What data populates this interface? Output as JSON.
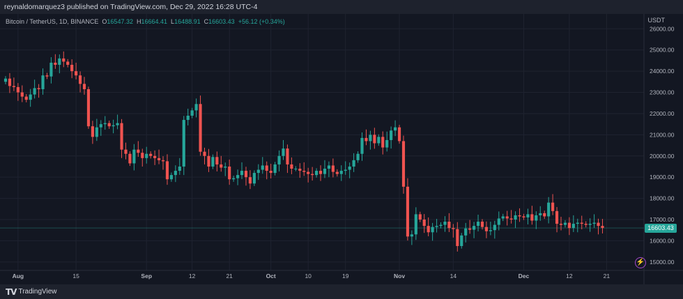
{
  "header": {
    "publish_line": "reynaldomarquez3 published on TradingView.com, Dec 29, 2022 16:28 UTC-4"
  },
  "legend": {
    "symbol": "Bitcoin / TetherUS, 1D, BINANCE",
    "open_key": "O",
    "open": "16547.32",
    "high_key": "H",
    "high": "16664.41",
    "low_key": "L",
    "low": "16488.91",
    "close_key": "C",
    "close": "16603.43",
    "change": "+56.12 (+0.34%)"
  },
  "price_axis": {
    "currency": "USDT",
    "last_price_label": "16603.43"
  },
  "footer": {
    "brand": "TradingView",
    "logo_glyph": "TV"
  },
  "icons": {
    "bolt": "⚡"
  },
  "colors": {
    "background": "#131722",
    "up": "#26a69a",
    "down": "#ef5350",
    "grid": "#1f2330",
    "text": "#b2b5be",
    "accent_purple": "#a247c9"
  },
  "chart_data": {
    "type": "candlestick",
    "title": "",
    "symbol": "Bitcoin / TetherUS",
    "interval": "1D",
    "exchange": "BINANCE",
    "y_unit": "USDT",
    "ylim": [
      14600,
      26700
    ],
    "y_ticks": [
      15000,
      16000,
      17000,
      18000,
      19000,
      20000,
      21000,
      22000,
      23000,
      24000,
      25000,
      26000
    ],
    "y_tick_labels": [
      "15000.00",
      "16000.00",
      "17000.00",
      "18000.00",
      "19000.00",
      "20000.00",
      "21000.00",
      "22000.00",
      "23000.00",
      "24000.00",
      "25000.00",
      "26000.00"
    ],
    "x_ticks": [
      {
        "label": "Aug",
        "date": "2022-08-01"
      },
      {
        "label": "15",
        "date": "2022-08-15"
      },
      {
        "label": "Sep",
        "date": "2022-09-01"
      },
      {
        "label": "12",
        "date": "2022-09-12"
      },
      {
        "label": "21",
        "date": "2022-09-21"
      },
      {
        "label": "Oct",
        "date": "2022-10-01"
      },
      {
        "label": "10",
        "date": "2022-10-10"
      },
      {
        "label": "19",
        "date": "2022-10-19"
      },
      {
        "label": "Nov",
        "date": "2022-11-01"
      },
      {
        "label": "14",
        "date": "2022-11-14"
      },
      {
        "label": "Dec",
        "date": "2022-12-01"
      },
      {
        "label": "12",
        "date": "2022-12-12"
      },
      {
        "label": "21",
        "date": "2022-12-21"
      }
    ],
    "first_date": "2022-07-29",
    "last_date": "2022-12-29",
    "grid": true,
    "last_close": 16603.43,
    "closes": [
      23650,
      23300,
      23250,
      23000,
      22800,
      22650,
      22900,
      23200,
      23150,
      23800,
      23750,
      24400,
      24300,
      24600,
      24450,
      24300,
      24000,
      23800,
      23400,
      23150,
      21400,
      20900,
      21350,
      21500,
      21550,
      21400,
      21450,
      21550,
      20300,
      20100,
      19650,
      20300,
      20150,
      19900,
      20100,
      20000,
      19900,
      19800,
      19750,
      18900,
      19100,
      19300,
      19500,
      21700,
      21900,
      22150,
      22450,
      20200,
      20000,
      19500,
      19950,
      19600,
      19450,
      19500,
      18900,
      18950,
      19100,
      19300,
      19000,
      18700,
      19200,
      19350,
      19550,
      19300,
      19200,
      19600,
      20000,
      20350,
      19600,
      19400,
      19400,
      19300,
      19250,
      19150,
      19100,
      19300,
      19150,
      19400,
      19550,
      19250,
      19150,
      19300,
      19350,
      19500,
      19800,
      20100,
      20850,
      20700,
      21000,
      20600,
      20900,
      20400,
      20750,
      21200,
      21350,
      20700,
      18550,
      16200,
      16300,
      17250,
      17000,
      16700,
      16400,
      16650,
      16700,
      16750,
      16900,
      16600,
      16550,
      15750,
      16250,
      16580,
      16520,
      16700,
      16900,
      16650,
      16450,
      16500,
      16750,
      17050,
      17150,
      17050,
      17000,
      17200,
      17150,
      17100,
      17250,
      16950,
      17200,
      17300,
      17150,
      17800,
      17400,
      16800,
      16750,
      16850,
      16600,
      16800,
      16850,
      16800,
      16750,
      16800,
      16850,
      16700,
      16603.43
    ]
  }
}
